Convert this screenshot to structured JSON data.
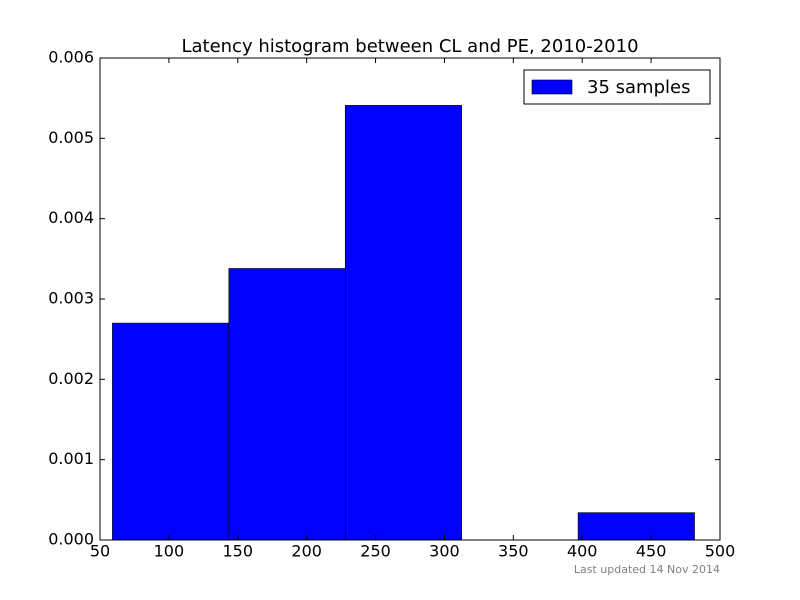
{
  "chart_data": {
    "type": "histogram",
    "title": "Latency histogram between CL and PE, 2010-2010",
    "bins": [
      59,
      143.5,
      228,
      312.5,
      397,
      481.5
    ],
    "series": [
      {
        "name": "35 samples",
        "color": "#0000ff",
        "values": [
          0.0027,
          0.00338,
          0.00541,
          0,
          0.00034
        ]
      }
    ],
    "xlim": [
      50,
      500
    ],
    "ylim": [
      0,
      0.006
    ],
    "xticks": [
      50,
      100,
      150,
      200,
      250,
      300,
      350,
      400,
      450,
      500
    ],
    "yticks": [
      {
        "value": 0,
        "label": "0.000"
      },
      {
        "value": 0.001,
        "label": "0.001"
      },
      {
        "value": 0.002,
        "label": "0.002"
      },
      {
        "value": 0.003,
        "label": "0.003"
      },
      {
        "value": 0.004,
        "label": "0.004"
      },
      {
        "value": 0.005,
        "label": "0.005"
      },
      {
        "value": 0.006,
        "label": "0.006"
      }
    ],
    "legend": "upper right",
    "annotation": "Last updated 14 Nov 2014"
  }
}
